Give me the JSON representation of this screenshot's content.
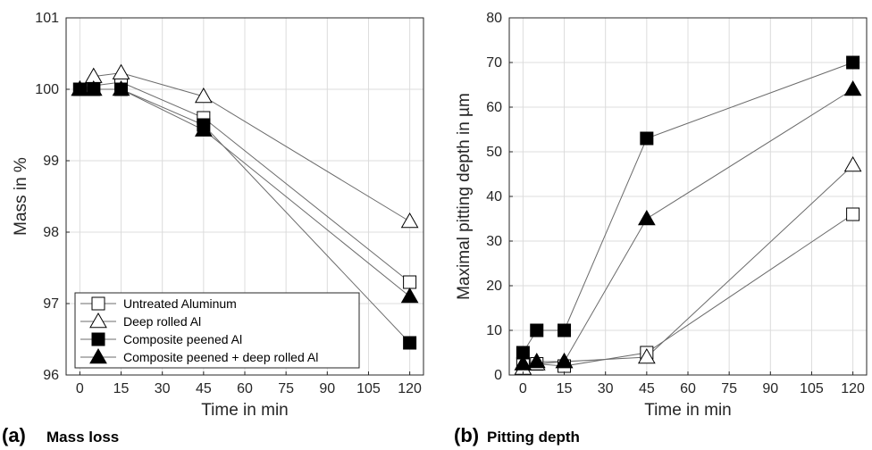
{
  "chart_data": [
    {
      "type": "line",
      "panel_letter": "(a)",
      "panel_name": "Mass loss",
      "xlabel": "Time in min",
      "ylabel": "Mass in %",
      "xlim": [
        -5,
        125
      ],
      "ylim": [
        96,
        101
      ],
      "xticks": [
        0,
        15,
        30,
        45,
        60,
        75,
        90,
        105,
        120
      ],
      "yticks": [
        96,
        97,
        98,
        99,
        100,
        101
      ],
      "grid": true,
      "legend_position": "bottom-left",
      "x": [
        0,
        5,
        15,
        45,
        120
      ],
      "series": [
        {
          "name": "Untreated Aluminum",
          "marker": "open-square",
          "values": [
            100.0,
            100.05,
            100.1,
            99.6,
            97.3
          ]
        },
        {
          "name": "Deep rolled Al",
          "marker": "open-triangle",
          "values": [
            100.0,
            100.18,
            100.23,
            99.9,
            98.15
          ]
        },
        {
          "name": "Composite peened Al",
          "marker": "filled-square",
          "values": [
            100.0,
            100.0,
            100.0,
            99.5,
            96.45
          ]
        },
        {
          "name": "Composite peened + deep rolled Al",
          "marker": "filled-triangle",
          "values": [
            100.0,
            100.0,
            100.0,
            99.43,
            97.1
          ]
        }
      ]
    },
    {
      "type": "line",
      "panel_letter": "(b)",
      "panel_name": "Pitting depth",
      "xlabel": "Time in min",
      "ylabel": "Maximal pitting depth in µm",
      "xlim": [
        -5,
        125
      ],
      "ylim": [
        0,
        80
      ],
      "xticks": [
        0,
        15,
        30,
        45,
        60,
        75,
        90,
        105,
        120
      ],
      "yticks": [
        0,
        10,
        20,
        30,
        40,
        50,
        60,
        70,
        80
      ],
      "grid": true,
      "x": [
        0,
        5,
        15,
        45,
        120
      ],
      "series": [
        {
          "name": "Untreated Aluminum",
          "marker": "open-square",
          "values": [
            2.5,
            2.5,
            2.0,
            5.0,
            36.0
          ]
        },
        {
          "name": "Deep rolled Al",
          "marker": "open-triangle",
          "values": [
            1.5,
            2.5,
            3.0,
            4.0,
            47.0
          ]
        },
        {
          "name": "Composite peened Al",
          "marker": "filled-square",
          "values": [
            5.0,
            10.0,
            10.0,
            53.0,
            70.0
          ]
        },
        {
          "name": "Composite peened + deep rolled Al",
          "marker": "filled-triangle",
          "values": [
            2.5,
            3.0,
            3.0,
            35.0,
            64.0
          ]
        }
      ]
    }
  ]
}
